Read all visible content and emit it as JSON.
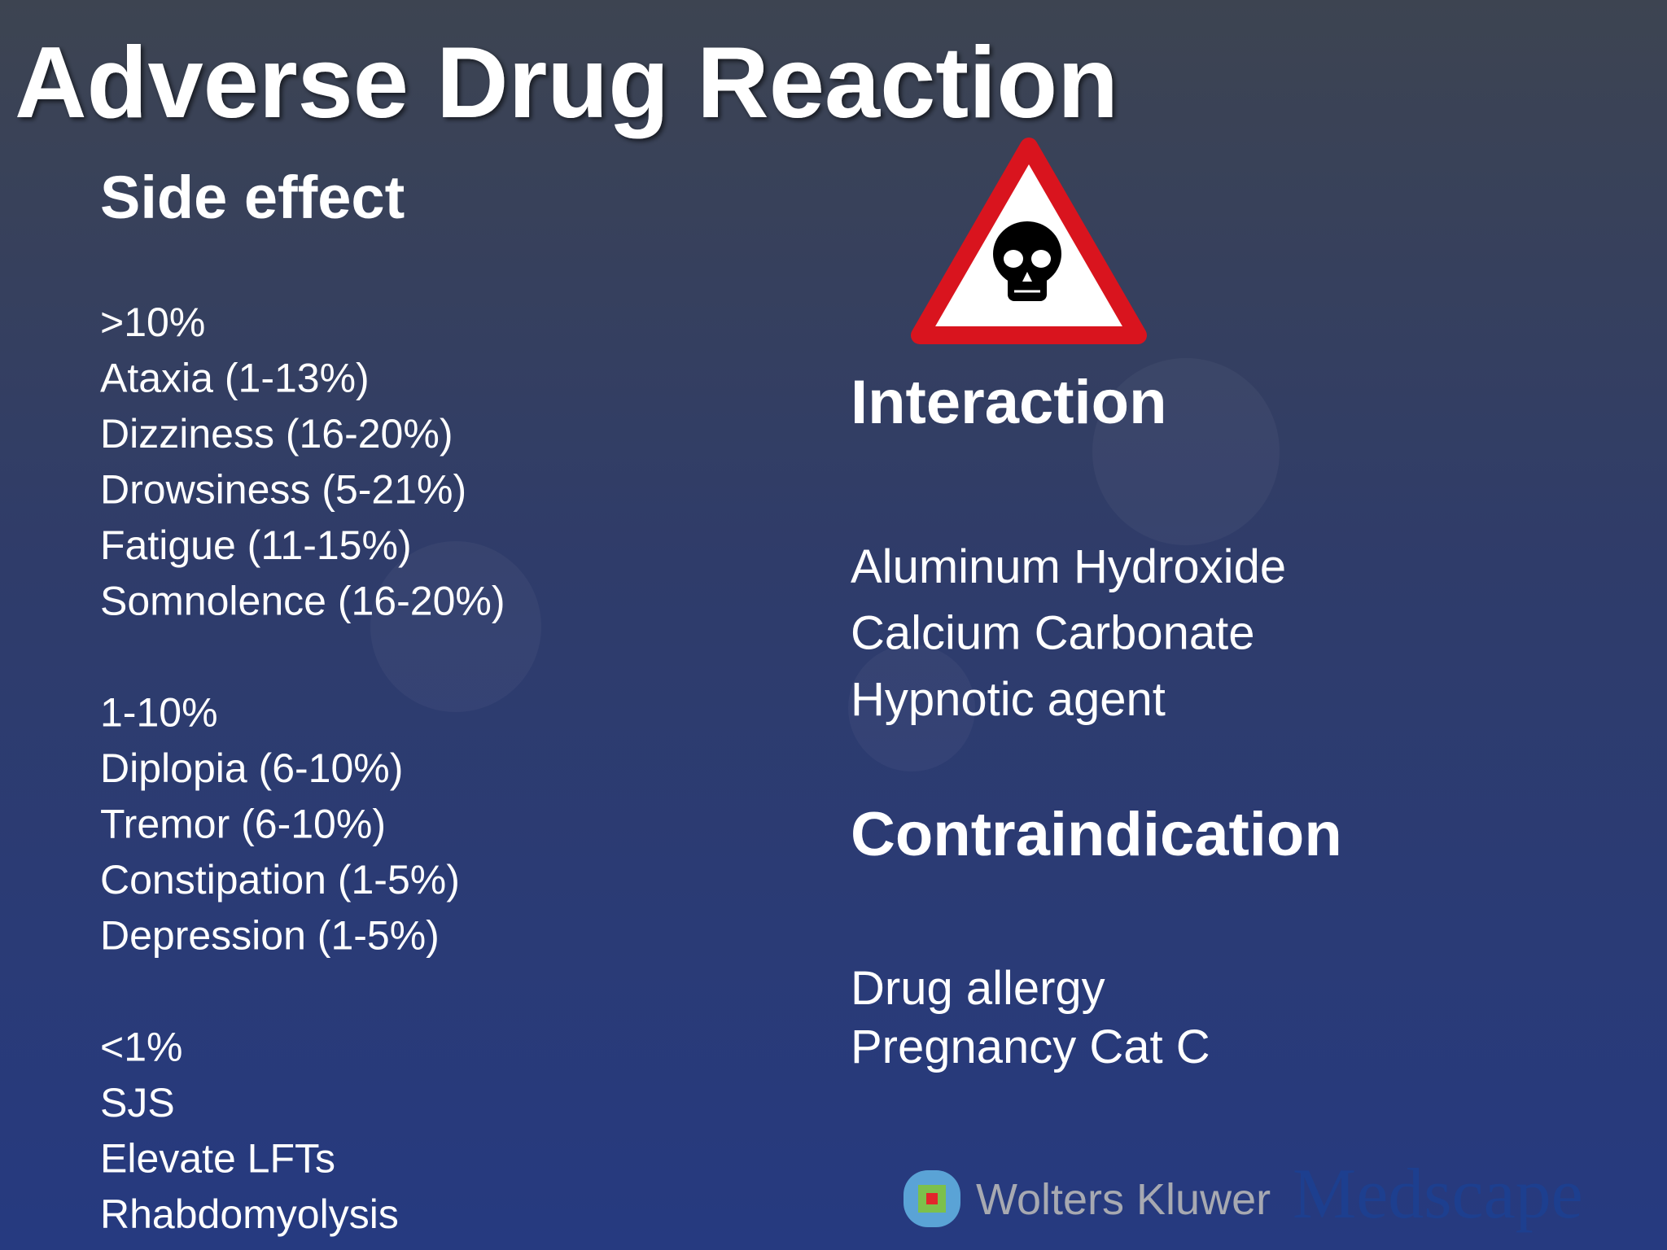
{
  "title": "Adverse Drug Reaction",
  "side_effect": {
    "heading": "Side effect",
    "groups": [
      {
        "label": ">10%",
        "items": [
          "Ataxia (1-13%)",
          "Dizziness (16-20%)",
          "Drowsiness (5-21%)",
          "Fatigue (11-15%)",
          "Somnolence (16-20%)"
        ]
      },
      {
        "label": "1-10%",
        "items": [
          "Diplopia (6-10%)",
          "Tremor (6-10%)",
          "Constipation (1-5%)",
          "Depression (1-5%)"
        ]
      },
      {
        "label": "<1%",
        "items": [
          "SJS",
          "Elevate LFTs",
          "Rhabdomyolysis"
        ]
      }
    ]
  },
  "interaction": {
    "heading": "Interaction",
    "items": [
      "Aluminum Hydroxide",
      "Calcium Carbonate",
      "Hypnotic agent"
    ]
  },
  "contraindication": {
    "heading": "Contraindication",
    "items": [
      "Drug allergy",
      "Pregnancy Cat C"
    ]
  },
  "footer": {
    "logo_1": "Wolters Kluwer",
    "logo_2": "Medscape"
  }
}
